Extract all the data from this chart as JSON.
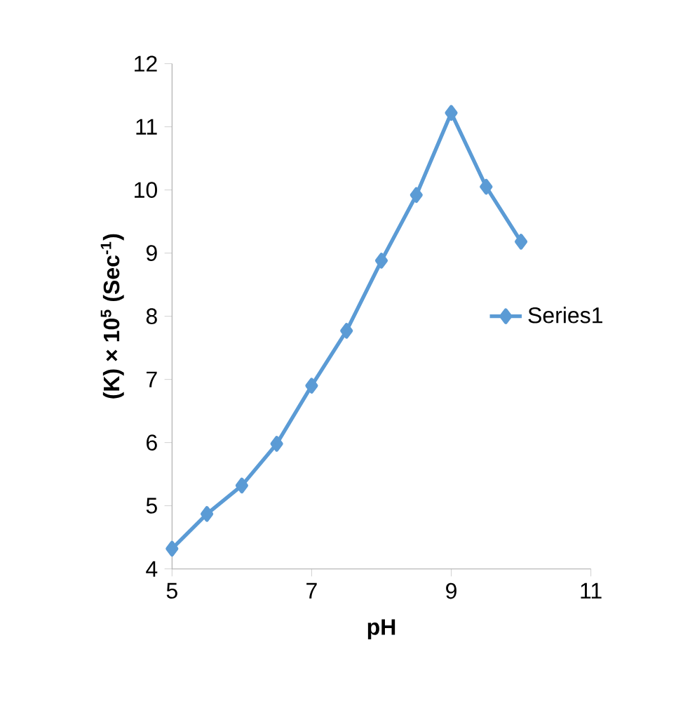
{
  "chart_data": {
    "type": "line",
    "xlabel": "pH",
    "ylabel": "**(K)  × 10$^{5}$ (Sec$^{-1}$)**",
    "x": [
      5,
      5.5,
      6,
      6.5,
      7,
      7.5,
      8,
      8.5,
      9,
      9.5,
      10
    ],
    "series": [
      {
        "name": "Series1",
        "color": "#5b9bd5",
        "values": [
          4.32,
          4.87,
          5.32,
          5.98,
          6.9,
          7.77,
          8.88,
          9.92,
          11.22,
          10.05,
          9.18
        ]
      }
    ],
    "xlim": [
      5,
      11
    ],
    "xticks": [
      5,
      7,
      9,
      11
    ],
    "ylim": [
      4,
      12
    ],
    "yticks": [
      4,
      5,
      6,
      7,
      8,
      9,
      10,
      11,
      12
    ],
    "grid": false,
    "legend": "right",
    "marker": "diamond",
    "line_style": "solid"
  }
}
